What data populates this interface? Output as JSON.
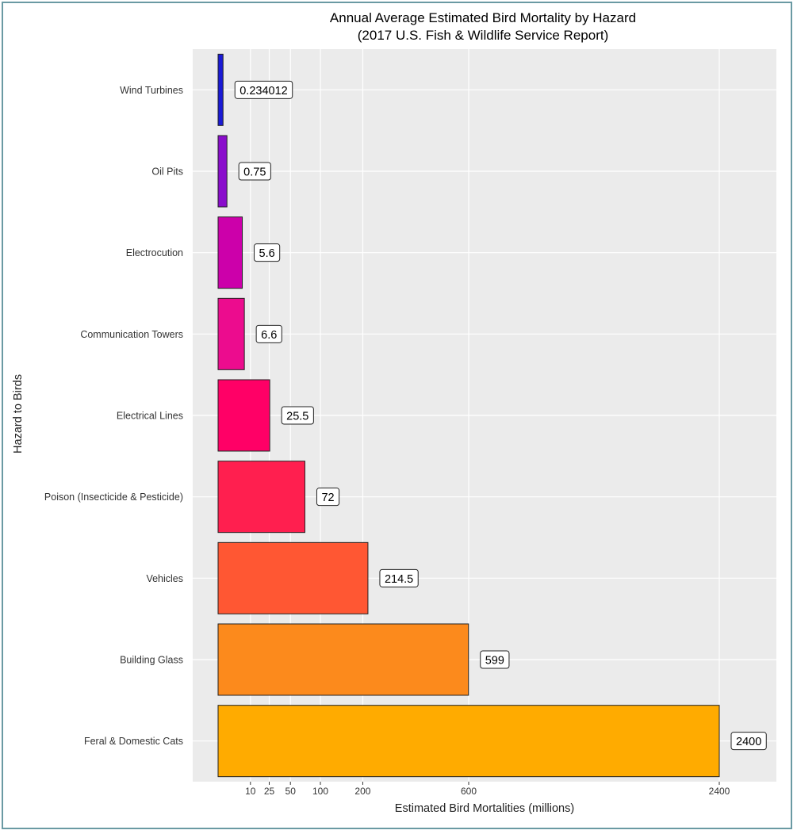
{
  "chart_data": {
    "type": "bar",
    "orientation": "horizontal",
    "title": "Annual Average Estimated Bird Mortality by Hazard",
    "subtitle": "(2017 U.S. Fish & Wildlife Service Report)",
    "xlabel": "Estimated Bird Mortalities (millions)",
    "ylabel": "Hazard to Birds",
    "x_scale": "sqrt",
    "xlim": [
      0,
      2800
    ],
    "x_ticks": [
      10,
      25,
      50,
      100,
      200,
      600,
      2400
    ],
    "x_tick_labels": [
      "10",
      "25",
      "50",
      "100",
      "200",
      "600",
      "2400"
    ],
    "categories": [
      "Wind Turbines",
      "Oil Pits",
      "Electrocution",
      "Communication Towers",
      "Electrical Lines",
      "Poison (Insecticide & Pesticide)",
      "Vehicles",
      "Building Glass",
      "Feral & Domestic Cats"
    ],
    "values": [
      0.234012,
      0.75,
      5.6,
      6.6,
      25.5,
      72,
      214.5,
      599,
      2400
    ],
    "value_labels": [
      "0.234012",
      "0.75",
      "5.6",
      "6.6",
      "25.5",
      "72",
      "214.5",
      "599",
      "2400"
    ],
    "colors": [
      "#1a1ad6",
      "#8a0ccc",
      "#cc00aa",
      "#ec0c8e",
      "#ff0066",
      "#ff1f4f",
      "#ff5733",
      "#fc8a1c",
      "#ffab00"
    ],
    "grid": true,
    "panel_background": "#ebebeb",
    "legend": "none"
  }
}
